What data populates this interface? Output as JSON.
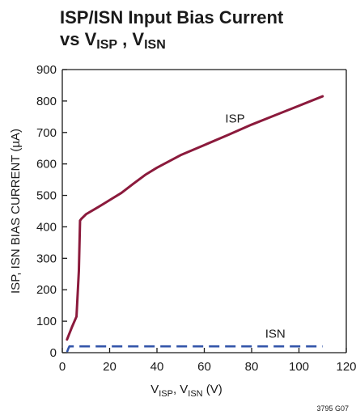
{
  "title": {
    "line1": "ISP/ISN Input Bias Current",
    "line2_prefix": "vs V",
    "line2_sub1": "ISP",
    "line2_sep": " , V",
    "line2_sub2": "ISN"
  },
  "figure_id": "3795 G07",
  "colors": {
    "isp": "#8b1a3c",
    "isn": "#3355aa",
    "axis": "#1a1a1a",
    "background": "#ffffff"
  },
  "chart_data": {
    "type": "line",
    "title": "ISP/ISN Input Bias Current vs VISP , VISN",
    "xlabel_parts": [
      "V",
      "ISP",
      ", V",
      "ISN",
      " (V)"
    ],
    "ylabel": "ISP, ISN BIAS CURRENT (µA)",
    "xlim": [
      0,
      120
    ],
    "ylim": [
      0,
      900
    ],
    "x_ticks": [
      0,
      20,
      40,
      60,
      80,
      100,
      120
    ],
    "y_ticks": [
      0,
      100,
      200,
      300,
      400,
      500,
      600,
      700,
      800,
      900
    ],
    "grid": false,
    "series": [
      {
        "name": "ISP",
        "style": "solid",
        "x": [
          2,
          4,
          6,
          7,
          7.5,
          8,
          10,
          15,
          20,
          25,
          30,
          35,
          40,
          50,
          60,
          70,
          80,
          90,
          100,
          110
        ],
        "y": [
          42,
          80,
          115,
          260,
          420,
          425,
          440,
          462,
          485,
          508,
          537,
          565,
          588,
          628,
          660,
          692,
          725,
          755,
          785,
          815
        ]
      },
      {
        "name": "ISN",
        "style": "dashed",
        "x": [
          2,
          2.5,
          3,
          110
        ],
        "y": [
          2,
          12,
          20,
          20
        ]
      }
    ],
    "annotations": [
      {
        "text": "ISP",
        "x": 73,
        "y": 745
      },
      {
        "text": "ISN",
        "x": 90,
        "y": 60
      }
    ]
  }
}
